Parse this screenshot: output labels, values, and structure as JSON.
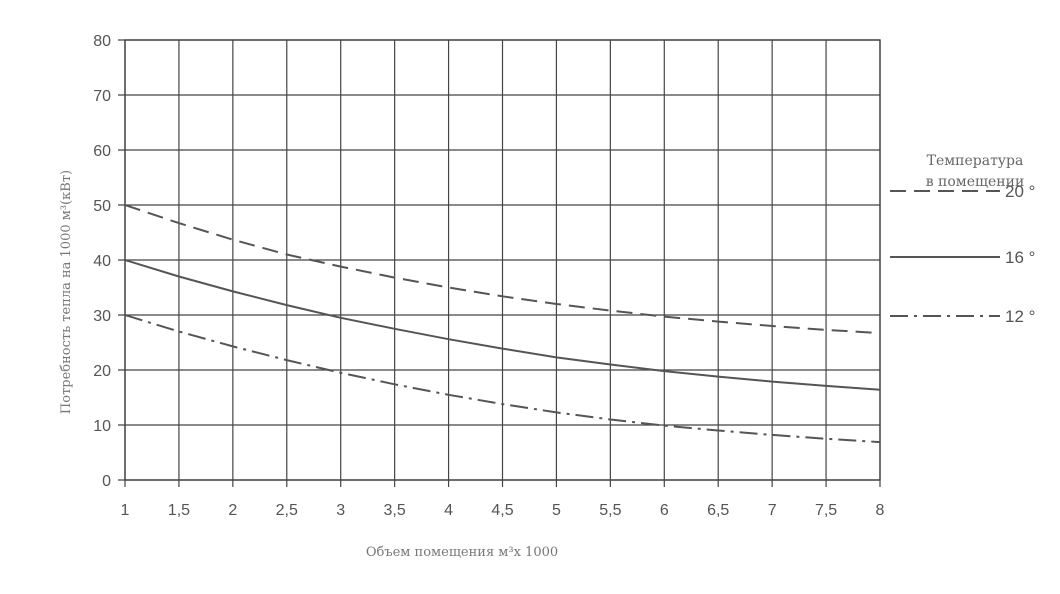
{
  "chart_data": {
    "type": "line",
    "title": "",
    "xlabel": "Объем помещения м³х 1000",
    "ylabel": "Потребность тепла на 1000 м³(кВт)",
    "x_ticks": [
      "1",
      "1,5",
      "2",
      "2,5",
      "3",
      "3,5",
      "4",
      "4,5",
      "5",
      "5,5",
      "6",
      "6,5",
      "7",
      "7,5",
      "8"
    ],
    "y_ticks": [
      "0",
      "10",
      "20",
      "30",
      "40",
      "50",
      "60",
      "70",
      "80"
    ],
    "xlim": [
      1,
      8
    ],
    "ylim": [
      0,
      80
    ],
    "grid": true,
    "legend": {
      "title_lines": [
        "Температура",
        "в помещении"
      ],
      "placement": "right"
    },
    "series": [
      {
        "name": "20 °",
        "style": "dashed",
        "x": [
          1,
          1.5,
          2,
          2.5,
          3,
          3.5,
          4,
          4.5,
          5,
          5.5,
          6,
          6.5,
          7,
          7.5,
          8
        ],
        "values": [
          50,
          46.7,
          43.7,
          41,
          38.8,
          36.8,
          35,
          33.4,
          32,
          30.8,
          29.7,
          28.8,
          28,
          27.3,
          26.7
        ]
      },
      {
        "name": "16 °",
        "style": "solid",
        "x": [
          1,
          1.5,
          2,
          2.5,
          3,
          3.5,
          4,
          4.5,
          5,
          5.5,
          6,
          6.5,
          7,
          7.5,
          8
        ],
        "values": [
          40,
          37,
          34.3,
          31.8,
          29.5,
          27.5,
          25.6,
          23.9,
          22.3,
          21,
          19.8,
          18.8,
          17.9,
          17.1,
          16.4
        ]
      },
      {
        "name": "12 °",
        "style": "dashdot",
        "x": [
          1,
          1.5,
          2,
          2.5,
          3,
          3.5,
          4,
          4.5,
          5,
          5.5,
          6,
          6.5,
          7,
          7.5,
          8
        ],
        "values": [
          30,
          27,
          24.3,
          21.8,
          19.5,
          17.4,
          15.5,
          13.8,
          12.3,
          11,
          9.9,
          9,
          8.2,
          7.5,
          6.9
        ]
      }
    ],
    "colors": {
      "line": "#555555",
      "grid": "#444444",
      "text": "#555555"
    }
  }
}
